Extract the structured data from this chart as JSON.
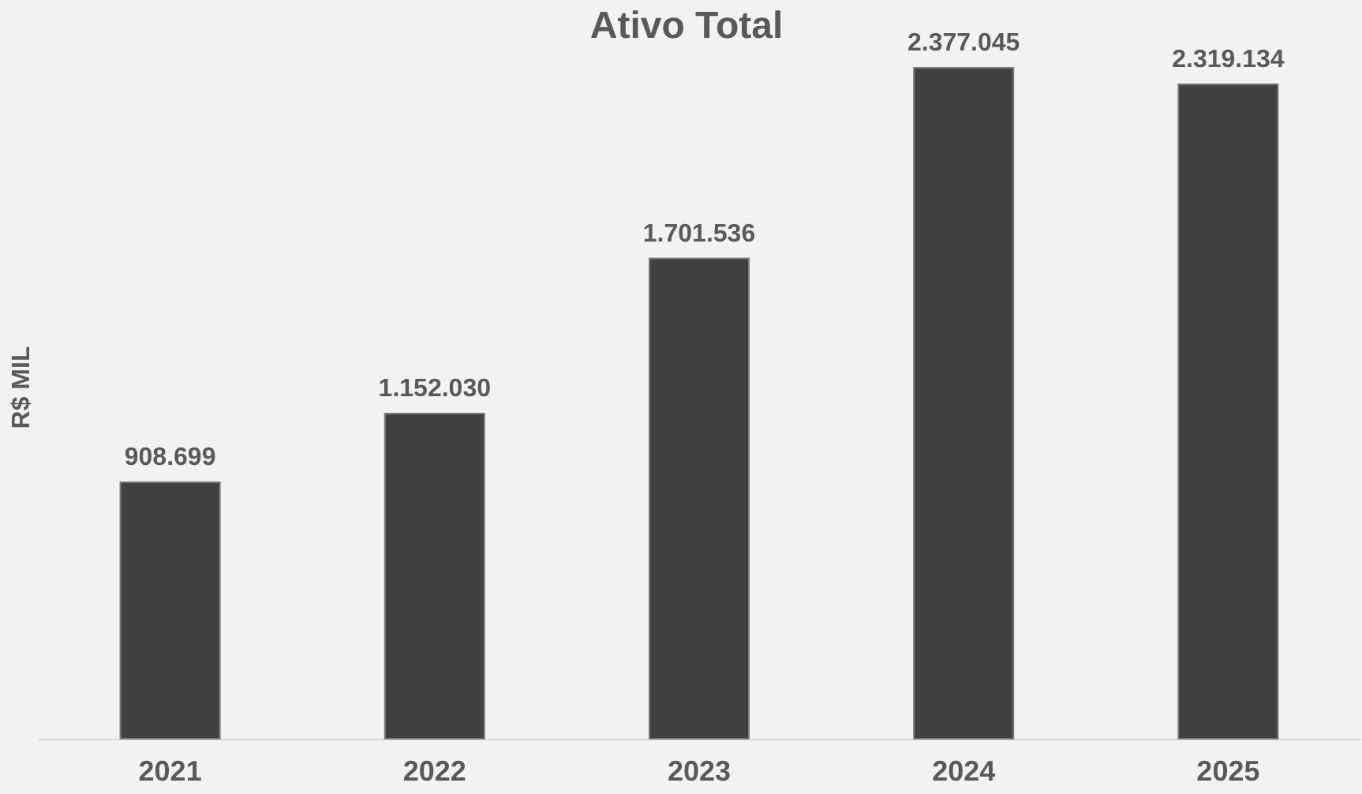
{
  "chart_data": {
    "type": "bar",
    "title": "Ativo Total",
    "ylabel": "R$ MIL",
    "categories": [
      "2021",
      "2022",
      "2023",
      "2024",
      "2025"
    ],
    "values": [
      908699,
      1152030,
      1701536,
      2377045,
      2319134
    ],
    "value_labels": [
      "908.699",
      "1.152.030",
      "1.701.536",
      "2.377.045",
      "2.319.134"
    ],
    "color": "#404040",
    "tick_labels": "x",
    "grid": false
  }
}
